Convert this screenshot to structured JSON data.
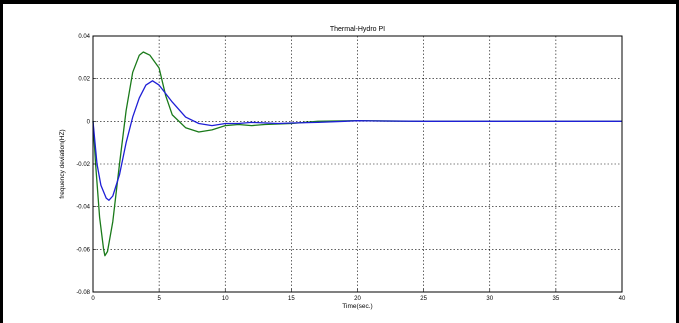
{
  "chart_data": {
    "type": "line",
    "title": "Thermal-Hydro PI",
    "xlabel": "Time(sec.)",
    "ylabel": "frequency deviation(HZ)",
    "xlim": [
      0,
      40
    ],
    "ylim": [
      -0.08,
      0.04
    ],
    "xticks": [
      0,
      5,
      10,
      15,
      20,
      25,
      30,
      35,
      40
    ],
    "xtick_labels": [
      "0",
      "5",
      "10",
      "15",
      "20",
      "25",
      "30",
      "35",
      "40"
    ],
    "yticks": [
      -0.08,
      -0.06,
      -0.04,
      -0.02,
      0,
      0.02,
      0.04
    ],
    "ytick_labels": [
      "-0.08",
      "-0.06",
      "-0.04",
      "-0.02",
      "0",
      "0.02",
      "0.04"
    ],
    "grid": true,
    "series": [
      {
        "color": "#1a7a1a",
        "points": [
          [
            0,
            0
          ],
          [
            0.2,
            -0.02
          ],
          [
            0.5,
            -0.045
          ],
          [
            0.8,
            -0.06
          ],
          [
            0.9,
            -0.063
          ],
          [
            1.1,
            -0.061
          ],
          [
            1.5,
            -0.047
          ],
          [
            2,
            -0.02
          ],
          [
            2.5,
            0.005
          ],
          [
            3,
            0.023
          ],
          [
            3.5,
            0.031
          ],
          [
            3.8,
            0.0325
          ],
          [
            4.3,
            0.031
          ],
          [
            5,
            0.025
          ],
          [
            5.5,
            0.012
          ],
          [
            6,
            0.003
          ],
          [
            7,
            -0.003
          ],
          [
            8,
            -0.005
          ],
          [
            9,
            -0.004
          ],
          [
            10,
            -0.002
          ],
          [
            11,
            -0.0015
          ],
          [
            12,
            -0.002
          ],
          [
            13,
            -0.0015
          ],
          [
            15,
            -0.001
          ],
          [
            17,
            0
          ],
          [
            20,
            0.0003
          ],
          [
            25,
            0
          ],
          [
            30,
            0
          ],
          [
            35,
            0
          ],
          [
            40,
            0
          ]
        ]
      },
      {
        "color": "#1f1fd6",
        "points": [
          [
            0,
            0
          ],
          [
            0.3,
            -0.02
          ],
          [
            0.6,
            -0.03
          ],
          [
            1,
            -0.036
          ],
          [
            1.2,
            -0.037
          ],
          [
            1.5,
            -0.035
          ],
          [
            2,
            -0.025
          ],
          [
            2.5,
            -0.01
          ],
          [
            3,
            0.002
          ],
          [
            3.5,
            0.011
          ],
          [
            4,
            0.017
          ],
          [
            4.5,
            0.019
          ],
          [
            5,
            0.017
          ],
          [
            5.5,
            0.013
          ],
          [
            6,
            0.009
          ],
          [
            7,
            0.002
          ],
          [
            8,
            -0.001
          ],
          [
            9,
            -0.002
          ],
          [
            10,
            -0.001
          ],
          [
            11,
            -0.001
          ],
          [
            12,
            -0.0005
          ],
          [
            14,
            -0.001
          ],
          [
            15,
            -0.0008
          ],
          [
            17,
            -0.0005
          ],
          [
            19,
            0
          ],
          [
            20,
            0.0003
          ],
          [
            21,
            0.0002
          ],
          [
            25,
            0
          ],
          [
            30,
            0
          ],
          [
            35,
            0
          ],
          [
            40,
            0
          ]
        ]
      }
    ]
  }
}
